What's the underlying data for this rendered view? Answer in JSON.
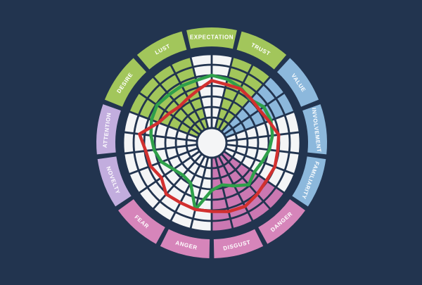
{
  "colors": {
    "background": "#22344F",
    "grid": "#22344F",
    "cell_white": "#F4F5F6",
    "label_text": "#FFFFFF",
    "ring_green": "#A2C65B",
    "ring_blue": "#8CB8DC",
    "ring_pink": "#D685BA",
    "ring_lavender": "#C2ADDE",
    "sector_pink": "#CB78B2",
    "line_red": "#D2302F",
    "line_green": "#2FA04A"
  },
  "chart_data": {
    "type": "radar",
    "description": "Circular emotion-wheel radar chart: 13 labeled outer ring segments, inner polar grid of 7 rings and 26 spokes (segment centers and boundaries), shaded category wedges, and two closed data polylines (red and green).",
    "direction": "clockwise",
    "start_at_top": "EXPECTATION",
    "rings": 7,
    "value_range": [
      0,
      7
    ],
    "spokes": 26,
    "spoke_note": "spoke k is at k*13.846 deg clockwise from top; even k = segment centers in listed order, odd k = segment boundaries; series values are ring units from hub (0) to outer grid edge (7)",
    "grid": true,
    "legend": false,
    "segments": [
      {
        "label": "EXPECTATION",
        "ring_color": "#A2C65B",
        "sector_color": "#F4F5F6",
        "label_flipped": false
      },
      {
        "label": "TRUST",
        "ring_color": "#A2C65B",
        "sector_color": "#A2C65B",
        "label_flipped": false
      },
      {
        "label": "VALUE",
        "ring_color": "#8CB8DC",
        "sector_color": "#8CB8DC",
        "label_flipped": false
      },
      {
        "label": "INVOLVEMENT",
        "ring_color": "#8CB8DC",
        "sector_color": "#F4F5F6",
        "label_flipped": false
      },
      {
        "label": "FAMILIARITY",
        "ring_color": "#8CB8DC",
        "sector_color": "#F4F5F6",
        "label_flipped": false
      },
      {
        "label": "DANGER",
        "ring_color": "#D685BA",
        "sector_color": "#CB78B2",
        "label_flipped": true
      },
      {
        "label": "DISGUST",
        "ring_color": "#D685BA",
        "sector_color": "#CB78B2",
        "label_flipped": true
      },
      {
        "label": "ANGER",
        "ring_color": "#D685BA",
        "sector_color": "#F4F5F6",
        "label_flipped": true
      },
      {
        "label": "FEAR",
        "ring_color": "#D685BA",
        "sector_color": "#F4F5F6",
        "label_flipped": true
      },
      {
        "label": "NOVELTY",
        "ring_color": "#C2ADDE",
        "sector_color": "#F4F5F6",
        "label_flipped": true
      },
      {
        "label": "ATTENTION",
        "ring_color": "#C2ADDE",
        "sector_color": "#F4F5F6",
        "label_flipped": false
      },
      {
        "label": "DESIRE",
        "ring_color": "#A2C65B",
        "sector_color": "#A2C65B",
        "label_flipped": false
      },
      {
        "label": "LUST",
        "ring_color": "#A2C65B",
        "sector_color": "#A2C65B",
        "label_flipped": false
      }
    ],
    "series": [
      {
        "name": "green",
        "color": "#2FA04A",
        "values": [
          5.0,
          4.8,
          4.5,
          4.1,
          4.6,
          4.6,
          4.4,
          4.1,
          3.7,
          3.5,
          3.9,
          3.2,
          2.7,
          3.1,
          5.1,
          2.9,
          2.7,
          3.0,
          3.7,
          4.1,
          4.4,
          4.7,
          4.9,
          4.7,
          4.7,
          4.7
        ]
      },
      {
        "name": "red",
        "color": "#D2302F",
        "values": [
          4.5,
          4.3,
          4.4,
          4.2,
          4.1,
          4.4,
          5.0,
          4.9,
          5.0,
          4.9,
          5.1,
          5.4,
          5.3,
          5.1,
          5.1,
          5.0,
          5.1,
          4.4,
          4.8,
          4.9,
          5.5,
          4.0,
          3.5,
          3.2,
          3.4,
          3.8
        ]
      }
    ]
  }
}
